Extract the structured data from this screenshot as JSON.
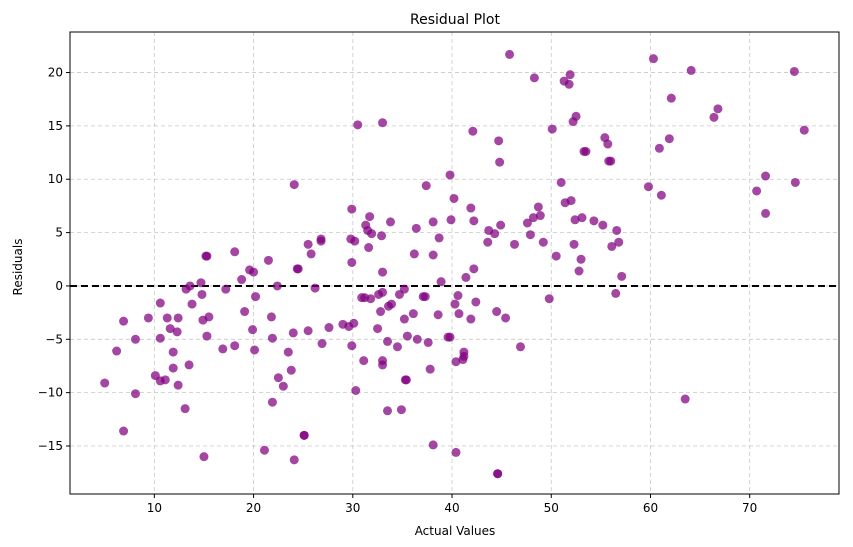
{
  "chart_data": {
    "type": "scatter",
    "title": "Residual Plot",
    "xlabel": "Actual Values",
    "ylabel": "Residuals",
    "xlim": [
      1.5,
      79
    ],
    "ylim": [
      -19.5,
      23.8
    ],
    "xticks": [
      10,
      20,
      30,
      40,
      50,
      60,
      70
    ],
    "yticks": [
      -15,
      -10,
      -5,
      0,
      5,
      10,
      15,
      20
    ],
    "grid": true,
    "reference_line": {
      "y": 0,
      "style": "dashed",
      "color": "#000000"
    },
    "marker_color": "#800080",
    "marker_alpha": 0.72,
    "series": [
      {
        "points": [
          [
            5.0,
            -9.1
          ],
          [
            6.2,
            -6.1
          ],
          [
            6.9,
            -3.3
          ],
          [
            6.9,
            -13.6
          ],
          [
            8.1,
            -10.1
          ],
          [
            8.1,
            -5.0
          ],
          [
            9.4,
            -3.0
          ],
          [
            10.6,
            -1.6
          ],
          [
            10.1,
            -8.4
          ],
          [
            10.6,
            -8.9
          ],
          [
            11.1,
            -8.8
          ],
          [
            10.6,
            -4.9
          ],
          [
            11.6,
            -4.0
          ],
          [
            11.9,
            -6.2
          ],
          [
            11.9,
            -7.7
          ],
          [
            12.3,
            -4.3
          ],
          [
            12.4,
            -3.0
          ],
          [
            12.4,
            -9.3
          ],
          [
            11.3,
            -3.0
          ],
          [
            13.1,
            -11.5
          ],
          [
            13.2,
            -0.3
          ],
          [
            13.5,
            -7.4
          ],
          [
            13.8,
            -1.7
          ],
          [
            13.6,
            0.0
          ],
          [
            14.7,
            0.3
          ],
          [
            14.8,
            -0.8
          ],
          [
            14.9,
            -3.2
          ],
          [
            15.2,
            2.8
          ],
          [
            15.3,
            2.8
          ],
          [
            15.0,
            -16.0
          ],
          [
            15.3,
            -4.7
          ],
          [
            15.5,
            -2.9
          ],
          [
            16.9,
            -5.9
          ],
          [
            17.2,
            -0.3
          ],
          [
            18.1,
            -5.6
          ],
          [
            18.1,
            3.2
          ],
          [
            18.8,
            0.6
          ],
          [
            19.1,
            -2.4
          ],
          [
            19.6,
            1.5
          ],
          [
            20.0,
            1.3
          ],
          [
            20.2,
            -1.0
          ],
          [
            19.9,
            -4.1
          ],
          [
            20.1,
            -6.0
          ],
          [
            21.1,
            -15.4
          ],
          [
            21.5,
            2.4
          ],
          [
            21.8,
            -2.9
          ],
          [
            21.9,
            -4.9
          ],
          [
            21.9,
            -10.9
          ],
          [
            22.4,
            0.0
          ],
          [
            22.5,
            -8.6
          ],
          [
            23.0,
            -9.4
          ],
          [
            23.5,
            -6.2
          ],
          [
            23.8,
            -7.9
          ],
          [
            24.0,
            -4.4
          ],
          [
            24.1,
            -16.3
          ],
          [
            24.1,
            9.5
          ],
          [
            24.4,
            1.6
          ],
          [
            24.5,
            1.6
          ],
          [
            25.1,
            -14.0
          ],
          [
            25.1,
            -14.0
          ],
          [
            25.5,
            -4.2
          ],
          [
            25.5,
            3.9
          ],
          [
            25.8,
            3.0
          ],
          [
            26.2,
            -0.2
          ],
          [
            26.8,
            4.2
          ],
          [
            26.8,
            4.4
          ],
          [
            26.9,
            -5.4
          ],
          [
            27.6,
            -3.9
          ],
          [
            29.0,
            -3.6
          ],
          [
            29.6,
            -3.8
          ],
          [
            29.8,
            4.4
          ],
          [
            29.9,
            7.2
          ],
          [
            29.9,
            2.2
          ],
          [
            29.9,
            -5.6
          ],
          [
            30.1,
            -3.5
          ],
          [
            30.3,
            -9.8
          ],
          [
            30.2,
            4.2
          ],
          [
            30.5,
            15.1
          ],
          [
            30.9,
            -1.1
          ],
          [
            31.1,
            -7.0
          ],
          [
            31.2,
            -1.1
          ],
          [
            31.3,
            5.7
          ],
          [
            31.5,
            5.2
          ],
          [
            31.6,
            3.6
          ],
          [
            31.7,
            6.5
          ],
          [
            31.8,
            -1.2
          ],
          [
            31.9,
            4.9
          ],
          [
            32.5,
            -4.0
          ],
          [
            32.6,
            -0.8
          ],
          [
            32.8,
            -2.4
          ],
          [
            32.9,
            4.7
          ],
          [
            33.0,
            15.3
          ],
          [
            33.0,
            -0.6
          ],
          [
            33.0,
            1.3
          ],
          [
            33.0,
            -7.0
          ],
          [
            33.0,
            -7.4
          ],
          [
            33.5,
            -11.7
          ],
          [
            33.5,
            -5.2
          ],
          [
            33.6,
            -1.9
          ],
          [
            33.8,
            6.0
          ],
          [
            33.9,
            -1.7
          ],
          [
            34.5,
            -5.7
          ],
          [
            34.7,
            -0.8
          ],
          [
            34.9,
            -11.6
          ],
          [
            35.2,
            -0.3
          ],
          [
            35.2,
            -3.1
          ],
          [
            35.3,
            -8.8
          ],
          [
            35.4,
            -8.8
          ],
          [
            35.5,
            -4.7
          ],
          [
            36.1,
            -2.6
          ],
          [
            36.2,
            3.0
          ],
          [
            36.4,
            5.4
          ],
          [
            36.5,
            -5.0
          ],
          [
            37.1,
            -1.0
          ],
          [
            37.3,
            -1.0
          ],
          [
            37.4,
            9.4
          ],
          [
            37.6,
            -5.3
          ],
          [
            37.8,
            -7.8
          ],
          [
            38.1,
            -14.9
          ],
          [
            38.1,
            2.9
          ],
          [
            38.1,
            6.0
          ],
          [
            38.6,
            -2.7
          ],
          [
            38.7,
            4.5
          ],
          [
            38.9,
            0.4
          ],
          [
            39.6,
            -4.8
          ],
          [
            39.8,
            -4.8
          ],
          [
            39.8,
            10.4
          ],
          [
            39.9,
            6.2
          ],
          [
            40.2,
            8.2
          ],
          [
            40.3,
            -1.7
          ],
          [
            40.4,
            -15.6
          ],
          [
            40.4,
            -7.1
          ],
          [
            40.6,
            -0.9
          ],
          [
            40.7,
            -2.6
          ],
          [
            41.1,
            -6.9
          ],
          [
            41.2,
            -6.2
          ],
          [
            41.2,
            -6.6
          ],
          [
            41.4,
            0.8
          ],
          [
            41.9,
            -3.1
          ],
          [
            41.9,
            7.3
          ],
          [
            42.1,
            14.5
          ],
          [
            42.2,
            6.1
          ],
          [
            42.2,
            1.6
          ],
          [
            42.4,
            -1.5
          ],
          [
            43.6,
            4.1
          ],
          [
            43.7,
            5.2
          ],
          [
            44.3,
            4.9
          ],
          [
            44.5,
            -2.4
          ],
          [
            44.6,
            -17.6
          ],
          [
            44.6,
            -17.6
          ],
          [
            44.7,
            13.6
          ],
          [
            44.8,
            11.6
          ],
          [
            44.9,
            5.7
          ],
          [
            45.4,
            -3.0
          ],
          [
            45.8,
            21.7
          ],
          [
            46.3,
            3.9
          ],
          [
            46.9,
            -5.7
          ],
          [
            47.6,
            5.9
          ],
          [
            47.9,
            4.8
          ],
          [
            48.2,
            6.4
          ],
          [
            48.3,
            19.5
          ],
          [
            48.7,
            7.4
          ],
          [
            48.9,
            6.6
          ],
          [
            49.2,
            4.1
          ],
          [
            49.8,
            -1.2
          ],
          [
            50.1,
            14.7
          ],
          [
            50.5,
            2.8
          ],
          [
            51.0,
            9.7
          ],
          [
            51.3,
            19.2
          ],
          [
            51.4,
            7.8
          ],
          [
            51.8,
            18.9
          ],
          [
            51.9,
            19.8
          ],
          [
            52.0,
            8.0
          ],
          [
            52.2,
            15.4
          ],
          [
            52.3,
            3.9
          ],
          [
            52.4,
            6.2
          ],
          [
            52.5,
            15.9
          ],
          [
            52.8,
            1.4
          ],
          [
            53.0,
            2.5
          ],
          [
            53.1,
            6.4
          ],
          [
            53.3,
            12.6
          ],
          [
            53.5,
            12.6
          ],
          [
            54.3,
            6.1
          ],
          [
            55.2,
            5.7
          ],
          [
            55.4,
            13.9
          ],
          [
            55.7,
            13.3
          ],
          [
            55.8,
            11.7
          ],
          [
            56.0,
            11.7
          ],
          [
            56.1,
            3.7
          ],
          [
            56.5,
            -0.7
          ],
          [
            56.6,
            5.2
          ],
          [
            56.8,
            4.1
          ],
          [
            57.1,
            0.9
          ],
          [
            59.8,
            9.3
          ],
          [
            60.3,
            21.3
          ],
          [
            60.9,
            12.9
          ],
          [
            61.1,
            8.5
          ],
          [
            61.9,
            13.8
          ],
          [
            62.1,
            17.6
          ],
          [
            63.5,
            -10.6
          ],
          [
            64.1,
            20.2
          ],
          [
            66.4,
            15.8
          ],
          [
            66.8,
            16.6
          ],
          [
            70.7,
            8.9
          ],
          [
            71.6,
            10.3
          ],
          [
            71.6,
            6.8
          ],
          [
            74.5,
            20.1
          ],
          [
            74.6,
            9.7
          ],
          [
            75.5,
            14.6
          ]
        ]
      }
    ]
  }
}
